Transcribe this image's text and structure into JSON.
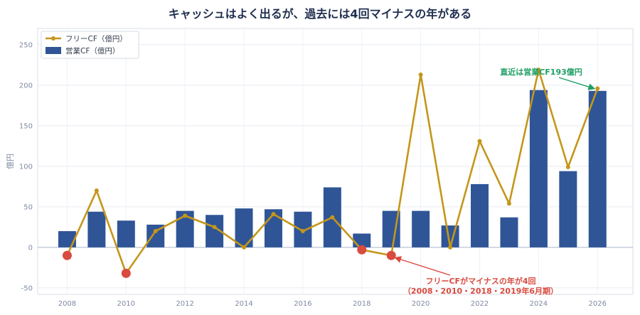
{
  "chart_data": {
    "type": "bar",
    "title": "キャッシュはよく出るが、過去には4回マイナスの年がある",
    "ylabel": "億円",
    "xlabel": "",
    "x_ticks": [
      "2008",
      "2010",
      "2012",
      "2014",
      "2016",
      "2018",
      "2020",
      "2022",
      "2024",
      "2026"
    ],
    "y_ticks": [
      -50,
      0,
      50,
      100,
      150,
      200,
      250
    ],
    "xlim": [
      2007,
      2027.2
    ],
    "ylim": [
      -58,
      270
    ],
    "grid": true,
    "legend_position": "top-left",
    "x": [
      2008,
      2009,
      2010,
      2011,
      2012,
      2013,
      2014,
      2015,
      2016,
      2017,
      2018,
      2019,
      2020,
      2021,
      2022,
      2023,
      2024,
      2025,
      2026
    ],
    "series": [
      {
        "name": "フリーCF（億円）",
        "type": "line",
        "color": "#c4961a",
        "values": [
          -10,
          70,
          -32,
          20,
          39,
          25,
          0,
          41,
          20,
          37,
          -3,
          -10,
          213,
          0,
          131,
          54,
          219,
          99,
          196
        ]
      },
      {
        "name": "営業CF（億円）",
        "type": "bar",
        "color": "#2f5597",
        "values": [
          20,
          44,
          33,
          28,
          45,
          40,
          48,
          47,
          44,
          74,
          17,
          45,
          45,
          27,
          78,
          37,
          194,
          94,
          193
        ]
      }
    ],
    "highlight_negative": {
      "color": "#d94a3f",
      "years": [
        2008,
        2010,
        2018,
        2019
      ]
    },
    "annotations": [
      {
        "text": "直近は営業CF193億円",
        "color": "#1e9e64",
        "x": 2026,
        "y": 193
      },
      {
        "lines": [
          "フリーCFがマイナスの年が4回",
          "（2008・2010・2018・2019年6月期）"
        ],
        "color": "#d94a3f",
        "x": 2019,
        "y": -10
      }
    ]
  }
}
